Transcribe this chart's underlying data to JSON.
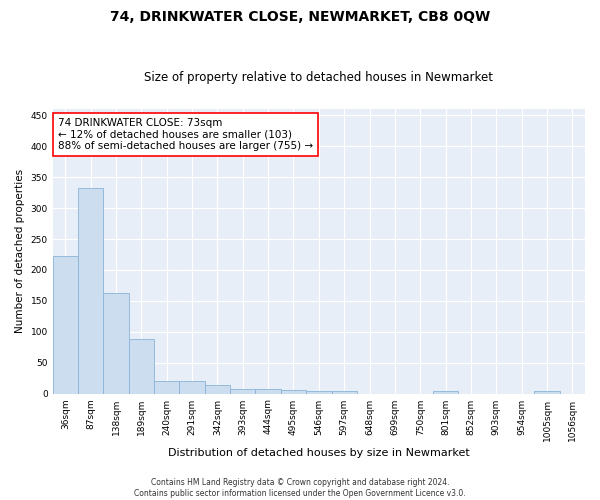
{
  "title": "74, DRINKWATER CLOSE, NEWMARKET, CB8 0QW",
  "subtitle": "Size of property relative to detached houses in Newmarket",
  "xlabel": "Distribution of detached houses by size in Newmarket",
  "ylabel": "Number of detached properties",
  "bar_color": "#ccddf0",
  "bar_edge_color": "#8ab4d8",
  "background_color": "#e8eef7",
  "categories": [
    "36sqm",
    "87sqm",
    "138sqm",
    "189sqm",
    "240sqm",
    "291sqm",
    "342sqm",
    "393sqm",
    "444sqm",
    "495sqm",
    "546sqm",
    "597sqm",
    "648sqm",
    "699sqm",
    "750sqm",
    "801sqm",
    "852sqm",
    "903sqm",
    "954sqm",
    "1005sqm",
    "1056sqm"
  ],
  "values": [
    223,
    333,
    163,
    88,
    20,
    20,
    14,
    7,
    7,
    5,
    4,
    4,
    0,
    0,
    0,
    4,
    0,
    0,
    0,
    4,
    0
  ],
  "ylim": [
    0,
    460
  ],
  "yticks": [
    0,
    50,
    100,
    150,
    200,
    250,
    300,
    350,
    400,
    450
  ],
  "annotation_text": "74 DRINKWATER CLOSE: 73sqm\n← 12% of detached houses are smaller (103)\n88% of semi-detached houses are larger (755) →",
  "footnote": "Contains HM Land Registry data © Crown copyright and database right 2024.\nContains public sector information licensed under the Open Government Licence v3.0.",
  "title_fontsize": 10,
  "subtitle_fontsize": 8.5,
  "ylabel_fontsize": 7.5,
  "xlabel_fontsize": 8,
  "annotation_fontsize": 7.5,
  "tick_fontsize": 6.5,
  "footnote_fontsize": 5.5
}
